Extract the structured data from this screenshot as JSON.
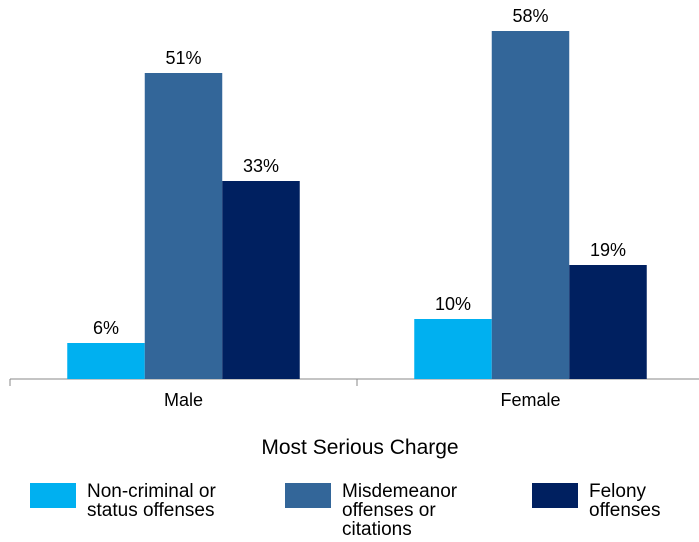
{
  "chart_data": {
    "type": "bar",
    "x_label": "Most Serious Charge",
    "categories": [
      "Male",
      "Female"
    ],
    "series": [
      {
        "name": "Non-criminal or status offenses",
        "color": "#00b0f0",
        "values": [
          6,
          10
        ],
        "value_labels": [
          "6%",
          "10%"
        ]
      },
      {
        "name": "Misdemeanor offenses or citations",
        "color": "#336699",
        "values": [
          51,
          58
        ],
        "value_labels": [
          "51%",
          "58%"
        ]
      },
      {
        "name": "Felony offenses",
        "color": "#002060",
        "values": [
          33,
          19
        ],
        "value_labels": [
          "33%",
          "19%"
        ]
      }
    ]
  }
}
